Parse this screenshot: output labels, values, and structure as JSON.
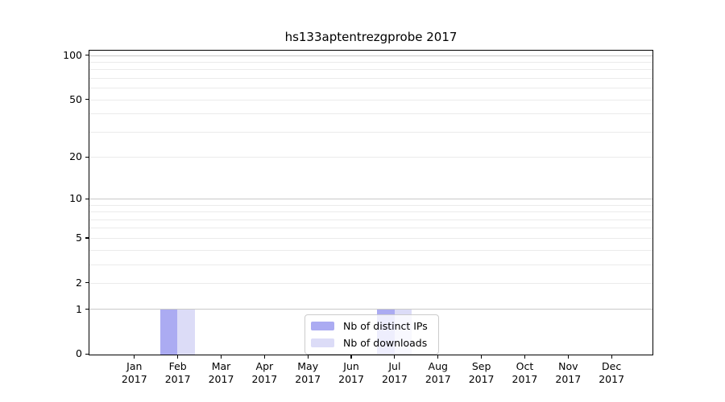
{
  "title": "hs133aptentrezgprobe 2017",
  "chart_data": {
    "type": "bar",
    "title": "hs133aptentrezgprobe 2017",
    "categories": [
      "Jan 2017",
      "Feb 2017",
      "Mar 2017",
      "Apr 2017",
      "May 2017",
      "Jun 2017",
      "Jul 2017",
      "Aug 2017",
      "Sep 2017",
      "Oct 2017",
      "Nov 2017",
      "Dec 2017"
    ],
    "series": [
      {
        "name": "Nb of distinct IPs",
        "color": "#ababf2",
        "values": [
          0,
          1,
          0,
          0,
          0,
          0,
          1,
          0,
          0,
          0,
          0,
          0
        ]
      },
      {
        "name": "Nb of downloads",
        "color": "#dcdcf7",
        "values": [
          0,
          1,
          0,
          0,
          0,
          0,
          1,
          0,
          0,
          0,
          0,
          0
        ]
      }
    ],
    "xlabel": "",
    "ylabel": "",
    "ylim": [
      0,
      100
    ],
    "yscale": "log10(1+x)",
    "ytick_values": [
      0,
      1,
      2,
      5,
      10,
      20,
      50,
      100
    ],
    "gridlines_major": [
      1,
      10,
      100
    ],
    "gridlines_minor": [
      2,
      3,
      4,
      5,
      6,
      7,
      8,
      9,
      20,
      30,
      40,
      50,
      60,
      70,
      80,
      90
    ],
    "grid": "horizontal",
    "legend_position": "lower center"
  },
  "legend": {
    "items": [
      {
        "label": "Nb of distinct IPs",
        "color": "#ababf2"
      },
      {
        "label": "Nb of downloads",
        "color": "#dcdcf7"
      }
    ]
  },
  "colors": {
    "grid_major": "#c9c9c9",
    "grid_minor": "#ebebeb",
    "axis": "#000000",
    "background": "#ffffff"
  }
}
